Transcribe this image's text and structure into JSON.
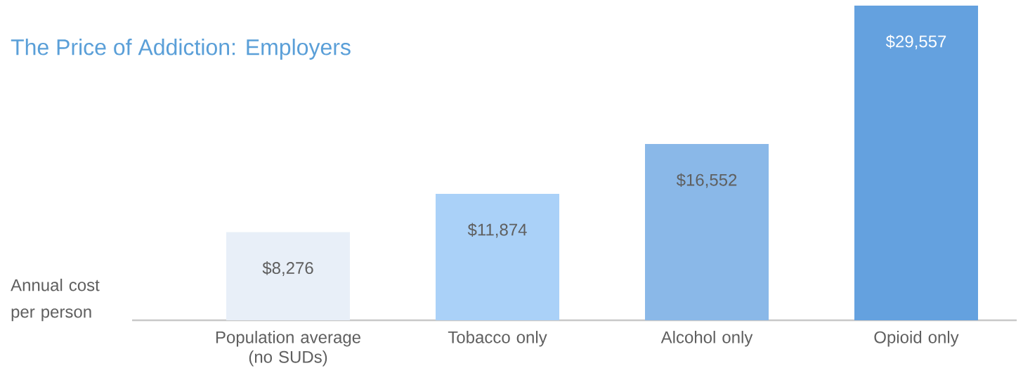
{
  "chart_data": {
    "type": "bar",
    "title": "The Price of Addiction: Employers",
    "annotations": [
      "Annual cost per person"
    ],
    "categories": [
      "Population average (no SUDs)",
      "Tobacco only",
      "Alcohol only",
      "Opioid only"
    ],
    "values": [
      8276,
      11874,
      16552,
      29557
    ],
    "value_labels": [
      "$8,276",
      "$11,874",
      "$16,552",
      "$29,557"
    ],
    "colors": [
      "#e8eff8",
      "#aad1f8",
      "#8ab8e8",
      "#64a1df"
    ]
  }
}
